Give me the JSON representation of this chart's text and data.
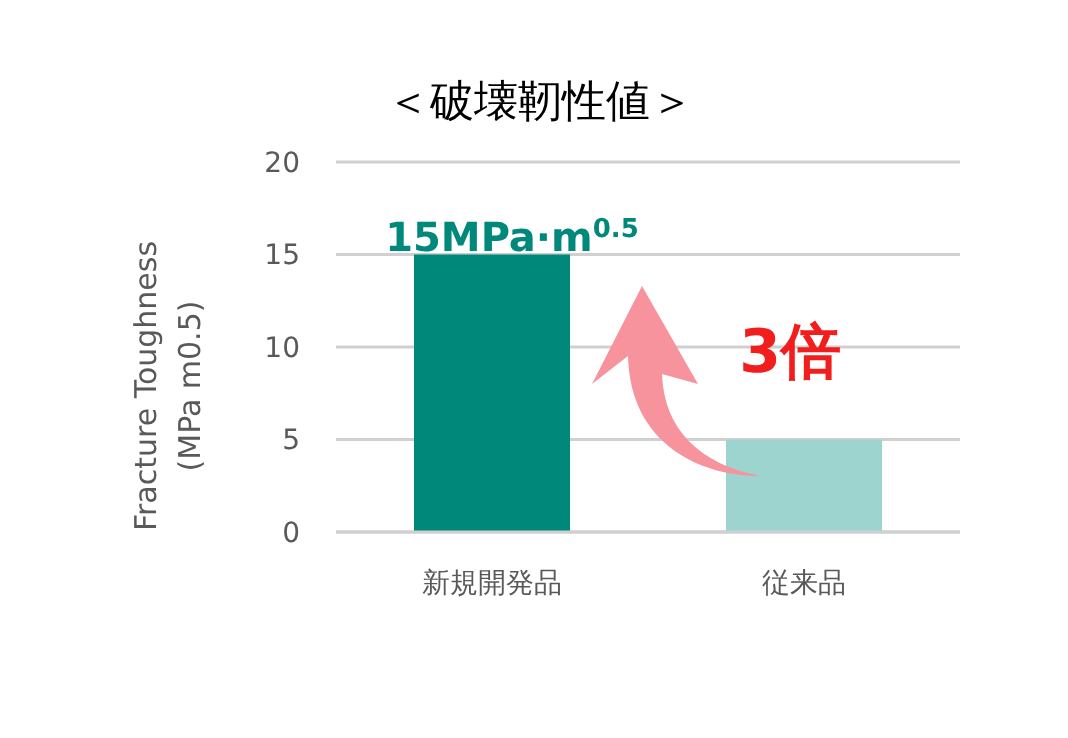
{
  "chart_data": {
    "type": "bar",
    "title": "＜破壊靭性値＞",
    "ylabel": "Fracture Toughness\n(MPa m0.5)",
    "categories": [
      "新規開発品",
      "従来品"
    ],
    "values": [
      15,
      5
    ],
    "colors": [
      "#00897b",
      "#9dd4d0"
    ],
    "ylim": [
      0,
      20
    ],
    "yticks": [
      0,
      5,
      10,
      15,
      20
    ],
    "grid": "y",
    "annotations": [
      {
        "text": "15MPa·m$^{0.5}$",
        "x": "新規開発品",
        "y": 15
      },
      "3倍"
    ]
  }
}
